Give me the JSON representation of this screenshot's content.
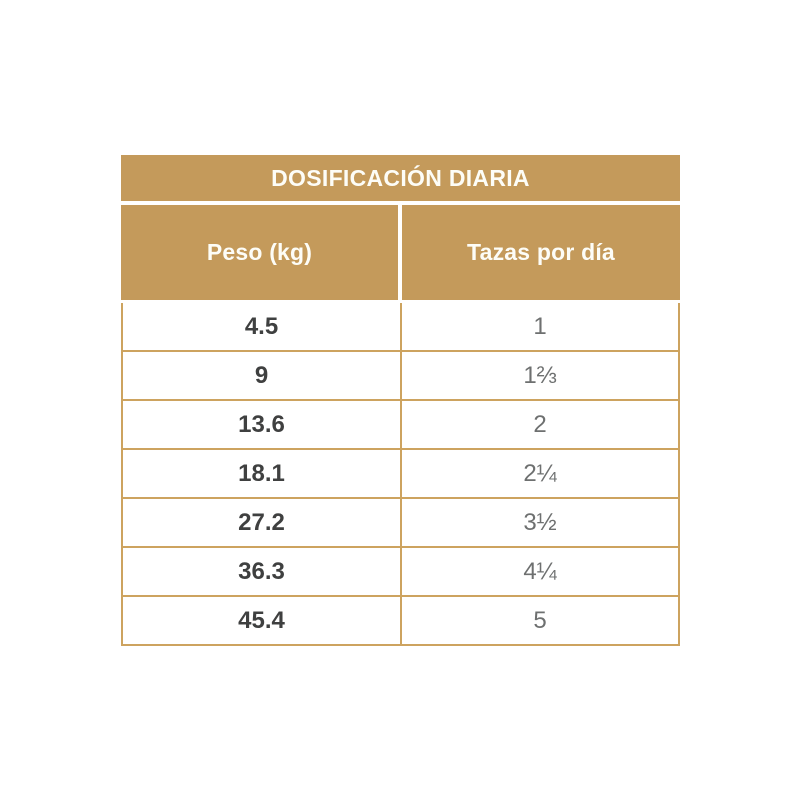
{
  "accent_color": "#c49a5b",
  "border_color": "#cda35f",
  "table": {
    "title": "DOSIFICACIÓN DIARIA",
    "columns": [
      "Peso (kg)",
      "Tazas por día"
    ],
    "rows": [
      {
        "peso": "4.5",
        "tazas": "1"
      },
      {
        "peso": "9",
        "tazas": "1⅔"
      },
      {
        "peso": "13.6",
        "tazas": "2"
      },
      {
        "peso": "18.1",
        "tazas": "2¼"
      },
      {
        "peso": "27.2",
        "tazas": "3½"
      },
      {
        "peso": "36.3",
        "tazas": "4¼"
      },
      {
        "peso": "45.4",
        "tazas": "5"
      }
    ]
  },
  "chart_data": {
    "type": "table",
    "title": "DOSIFICACIÓN DIARIA",
    "columns": [
      "Peso (kg)",
      "Tazas por día"
    ],
    "rows": [
      [
        "4.5",
        "1"
      ],
      [
        "9",
        "1⅔"
      ],
      [
        "13.6",
        "2"
      ],
      [
        "18.1",
        "2¼"
      ],
      [
        "27.2",
        "3½"
      ],
      [
        "36.3",
        "4¼"
      ],
      [
        "45.4",
        "5"
      ]
    ]
  }
}
